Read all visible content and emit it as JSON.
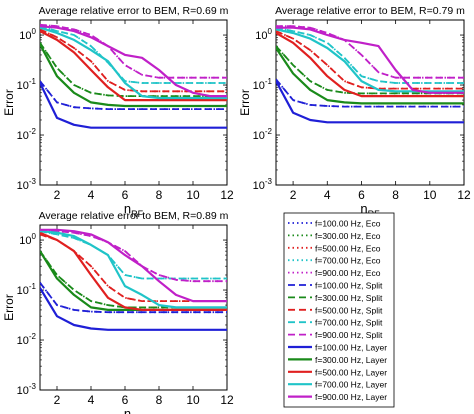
{
  "figure": {
    "legend": {
      "entries": [
        {
          "label": "f=100.00 Hz, Eco",
          "color": "#1f1fd6",
          "style": "dotted"
        },
        {
          "label": "f=300.00 Hz, Eco",
          "color": "#1a8a1a",
          "style": "dotted"
        },
        {
          "label": "f=500.00 Hz, Eco",
          "color": "#e02020",
          "style": "dotted"
        },
        {
          "label": "f=700.00 Hz, Eco",
          "color": "#20c4c8",
          "style": "dotted"
        },
        {
          "label": "f=900.00 Hz, Eco",
          "color": "#c020c8",
          "style": "dotted"
        },
        {
          "label": "f=100.00 Hz, Split",
          "color": "#1f1fd6",
          "style": "dashed"
        },
        {
          "label": "f=300.00 Hz, Split",
          "color": "#1a8a1a",
          "style": "dashed"
        },
        {
          "label": "f=500.00 Hz, Split",
          "color": "#e02020",
          "style": "dashed"
        },
        {
          "label": "f=700.00 Hz, Split",
          "color": "#20c4c8",
          "style": "dashed"
        },
        {
          "label": "f=900.00 Hz, Split",
          "color": "#c020c8",
          "style": "dashed"
        },
        {
          "label": "f=100.00 Hz, Layer",
          "color": "#1f1fd6",
          "style": "solid"
        },
        {
          "label": "f=300.00 Hz, Layer",
          "color": "#1a8a1a",
          "style": "solid"
        },
        {
          "label": "f=500.00 Hz, Layer",
          "color": "#e02020",
          "style": "solid"
        },
        {
          "label": "f=700.00 Hz, Layer",
          "color": "#20c4c8",
          "style": "solid"
        },
        {
          "label": "f=900.00 Hz, Layer",
          "color": "#c020c8",
          "style": "solid"
        }
      ]
    }
  },
  "chart_data": [
    {
      "type": "line",
      "title": "Average relative error to BEM, R=0.69 m",
      "xlabel": "n_RF",
      "ylabel": "Error",
      "xlim": [
        1,
        12
      ],
      "ylim": [
        0.001,
        2
      ],
      "yscale": "log",
      "xticks": [
        2,
        4,
        6,
        8,
        10,
        12
      ],
      "yticks": [
        "10^-3",
        "10^-2",
        "10^-1",
        "10^0"
      ],
      "x": [
        1,
        2,
        3,
        4,
        5,
        6,
        7,
        8,
        9,
        10,
        11,
        12
      ],
      "series": [
        {
          "name": "f=100.00 Hz, Eco",
          "values": [
            0.12,
            0.045,
            0.036,
            0.034,
            0.033,
            0.033,
            0.033,
            0.033,
            0.033,
            0.033,
            0.033,
            0.033
          ]
        },
        {
          "name": "f=300.00 Hz, Eco",
          "values": [
            0.7,
            0.22,
            0.1,
            0.07,
            0.062,
            0.06,
            0.06,
            0.06,
            0.06,
            0.06,
            0.06,
            0.06
          ]
        },
        {
          "name": "f=500.00 Hz, Eco",
          "values": [
            1.3,
            0.9,
            0.55,
            0.3,
            0.12,
            0.08,
            0.075,
            0.075,
            0.075,
            0.075,
            0.075,
            0.075
          ]
        },
        {
          "name": "f=700.00 Hz, Eco",
          "values": [
            1.5,
            1.2,
            1.0,
            0.6,
            0.28,
            0.12,
            0.11,
            0.11,
            0.11,
            0.11,
            0.11,
            0.11
          ]
        },
        {
          "name": "f=900.00 Hz, Eco",
          "values": [
            1.6,
            1.5,
            1.3,
            1.0,
            0.6,
            0.25,
            0.16,
            0.14,
            0.14,
            0.14,
            0.14,
            0.14
          ]
        },
        {
          "name": "f=100.00 Hz, Split",
          "values": [
            0.12,
            0.045,
            0.036,
            0.034,
            0.033,
            0.033,
            0.033,
            0.033,
            0.033,
            0.033,
            0.033,
            0.033
          ]
        },
        {
          "name": "f=300.00 Hz, Split",
          "values": [
            0.7,
            0.22,
            0.1,
            0.07,
            0.062,
            0.06,
            0.06,
            0.06,
            0.06,
            0.06,
            0.06,
            0.06
          ]
        },
        {
          "name": "f=500.00 Hz, Split",
          "values": [
            1.3,
            0.9,
            0.55,
            0.3,
            0.12,
            0.08,
            0.075,
            0.075,
            0.075,
            0.075,
            0.075,
            0.075
          ]
        },
        {
          "name": "f=700.00 Hz, Split",
          "values": [
            1.5,
            1.2,
            1.0,
            0.6,
            0.28,
            0.12,
            0.11,
            0.11,
            0.11,
            0.11,
            0.11,
            0.11
          ]
        },
        {
          "name": "f=900.00 Hz, Split",
          "values": [
            1.6,
            1.5,
            1.3,
            1.0,
            0.6,
            0.25,
            0.16,
            0.14,
            0.14,
            0.14,
            0.14,
            0.14
          ]
        },
        {
          "name": "f=100.00 Hz, Layer",
          "values": [
            0.11,
            0.022,
            0.016,
            0.014,
            0.014,
            0.014,
            0.014,
            0.014,
            0.014,
            0.014,
            0.014,
            0.014
          ]
        },
        {
          "name": "f=300.00 Hz, Layer",
          "values": [
            0.65,
            0.15,
            0.07,
            0.045,
            0.04,
            0.038,
            0.038,
            0.038,
            0.038,
            0.038,
            0.038,
            0.038
          ]
        },
        {
          "name": "f=500.00 Hz, Layer",
          "values": [
            1.2,
            0.8,
            0.45,
            0.2,
            0.09,
            0.05,
            0.05,
            0.05,
            0.05,
            0.05,
            0.05,
            0.05
          ]
        },
        {
          "name": "f=700.00 Hz, Layer",
          "values": [
            1.4,
            1.1,
            0.8,
            0.5,
            0.3,
            0.11,
            0.06,
            0.055,
            0.055,
            0.055,
            0.055,
            0.055
          ]
        },
        {
          "name": "f=900.00 Hz, Layer",
          "values": [
            1.5,
            1.4,
            1.2,
            0.9,
            0.6,
            0.4,
            0.35,
            0.2,
            0.1,
            0.07,
            0.06,
            0.06
          ]
        }
      ]
    },
    {
      "type": "line",
      "title": "Average relative error to BEM, R=0.79 m",
      "xlabel": "n_RF",
      "ylabel": "Error",
      "xlim": [
        1,
        12
      ],
      "ylim": [
        0.001,
        2
      ],
      "yscale": "log",
      "xticks": [
        2,
        4,
        6,
        8,
        10,
        12
      ],
      "yticks": [
        "10^-3",
        "10^-2",
        "10^-1",
        "10^0"
      ],
      "x": [
        1,
        2,
        3,
        4,
        5,
        6,
        7,
        8,
        9,
        10,
        11,
        12
      ],
      "series": [
        {
          "name": "f=100.00 Hz, Eco",
          "values": [
            0.13,
            0.05,
            0.04,
            0.038,
            0.037,
            0.037,
            0.037,
            0.037,
            0.037,
            0.037,
            0.037,
            0.037
          ]
        },
        {
          "name": "f=300.00 Hz, Eco",
          "values": [
            0.6,
            0.25,
            0.12,
            0.08,
            0.07,
            0.068,
            0.068,
            0.068,
            0.068,
            0.068,
            0.068,
            0.068
          ]
        },
        {
          "name": "f=500.00 Hz, Eco",
          "values": [
            1.2,
            0.85,
            0.5,
            0.25,
            0.12,
            0.09,
            0.085,
            0.085,
            0.085,
            0.085,
            0.085,
            0.085
          ]
        },
        {
          "name": "f=700.00 Hz, Eco",
          "values": [
            1.4,
            1.2,
            1.0,
            0.7,
            0.35,
            0.15,
            0.12,
            0.11,
            0.11,
            0.11,
            0.11,
            0.11
          ]
        },
        {
          "name": "f=900.00 Hz, Eco",
          "values": [
            1.5,
            1.5,
            1.4,
            1.1,
            0.8,
            0.4,
            0.18,
            0.14,
            0.14,
            0.14,
            0.14,
            0.14
          ]
        },
        {
          "name": "f=100.00 Hz, Split",
          "values": [
            0.13,
            0.05,
            0.04,
            0.038,
            0.037,
            0.037,
            0.037,
            0.037,
            0.037,
            0.037,
            0.037,
            0.037
          ]
        },
        {
          "name": "f=300.00 Hz, Split",
          "values": [
            0.6,
            0.25,
            0.12,
            0.08,
            0.07,
            0.068,
            0.068,
            0.068,
            0.068,
            0.068,
            0.068,
            0.068
          ]
        },
        {
          "name": "f=500.00 Hz, Split",
          "values": [
            1.2,
            0.85,
            0.5,
            0.25,
            0.12,
            0.09,
            0.085,
            0.085,
            0.085,
            0.085,
            0.085,
            0.085
          ]
        },
        {
          "name": "f=700.00 Hz, Split",
          "values": [
            1.4,
            1.2,
            1.0,
            0.7,
            0.35,
            0.15,
            0.12,
            0.11,
            0.11,
            0.11,
            0.11,
            0.11
          ]
        },
        {
          "name": "f=900.00 Hz, Split",
          "values": [
            1.5,
            1.5,
            1.4,
            1.1,
            0.8,
            0.4,
            0.18,
            0.14,
            0.14,
            0.14,
            0.14,
            0.14
          ]
        },
        {
          "name": "f=100.00 Hz, Layer",
          "values": [
            0.12,
            0.028,
            0.02,
            0.018,
            0.018,
            0.018,
            0.018,
            0.018,
            0.018,
            0.018,
            0.018,
            0.018
          ]
        },
        {
          "name": "f=300.00 Hz, Layer",
          "values": [
            0.55,
            0.17,
            0.08,
            0.05,
            0.045,
            0.043,
            0.043,
            0.043,
            0.043,
            0.043,
            0.043,
            0.043
          ]
        },
        {
          "name": "f=500.00 Hz, Layer",
          "values": [
            1.1,
            0.7,
            0.35,
            0.15,
            0.08,
            0.06,
            0.06,
            0.06,
            0.06,
            0.06,
            0.06,
            0.06
          ]
        },
        {
          "name": "f=700.00 Hz, Layer",
          "values": [
            1.3,
            1.1,
            0.85,
            0.55,
            0.3,
            0.12,
            0.08,
            0.075,
            0.075,
            0.075,
            0.075,
            0.075
          ]
        },
        {
          "name": "f=900.00 Hz, Layer",
          "values": [
            1.4,
            1.4,
            1.3,
            1.0,
            0.8,
            0.7,
            0.6,
            0.2,
            0.08,
            0.07,
            0.07,
            0.07
          ]
        }
      ]
    },
    {
      "type": "line",
      "title": "Average relative error to BEM, R=0.89 m",
      "xlabel": "n_RF",
      "ylabel": "Error",
      "xlim": [
        1,
        12
      ],
      "ylim": [
        0.001,
        2
      ],
      "yscale": "log",
      "xticks": [
        2,
        4,
        6,
        8,
        10,
        12
      ],
      "yticks": [
        "10^-3",
        "10^-2",
        "10^-1",
        "10^0"
      ],
      "x": [
        1,
        2,
        3,
        4,
        5,
        6,
        7,
        8,
        9,
        10,
        11,
        12
      ],
      "series": [
        {
          "name": "f=100.00 Hz, Eco",
          "values": [
            0.14,
            0.05,
            0.04,
            0.037,
            0.036,
            0.036,
            0.036,
            0.036,
            0.036,
            0.036,
            0.036,
            0.036
          ]
        },
        {
          "name": "f=300.00 Hz, Eco",
          "values": [
            0.6,
            0.2,
            0.1,
            0.06,
            0.05,
            0.045,
            0.045,
            0.045,
            0.045,
            0.045,
            0.045,
            0.045
          ]
        },
        {
          "name": "f=500.00 Hz, Eco",
          "values": [
            1.3,
            1.0,
            0.6,
            0.3,
            0.12,
            0.07,
            0.06,
            0.06,
            0.06,
            0.06,
            0.06,
            0.06
          ]
        },
        {
          "name": "f=700.00 Hz, Eco",
          "values": [
            1.5,
            1.3,
            1.1,
            0.8,
            0.5,
            0.2,
            0.17,
            0.17,
            0.17,
            0.17,
            0.17,
            0.17
          ]
        },
        {
          "name": "f=900.00 Hz, Eco",
          "values": [
            1.6,
            1.5,
            1.4,
            1.2,
            0.9,
            0.6,
            0.3,
            0.2,
            0.16,
            0.15,
            0.15,
            0.15
          ]
        },
        {
          "name": "f=100.00 Hz, Split",
          "values": [
            0.14,
            0.05,
            0.04,
            0.037,
            0.036,
            0.036,
            0.036,
            0.036,
            0.036,
            0.036,
            0.036,
            0.036
          ]
        },
        {
          "name": "f=300.00 Hz, Split",
          "values": [
            0.6,
            0.2,
            0.1,
            0.06,
            0.05,
            0.045,
            0.045,
            0.045,
            0.045,
            0.045,
            0.045,
            0.045
          ]
        },
        {
          "name": "f=500.00 Hz, Split",
          "values": [
            1.3,
            1.0,
            0.6,
            0.3,
            0.12,
            0.07,
            0.06,
            0.06,
            0.06,
            0.06,
            0.06,
            0.06
          ]
        },
        {
          "name": "f=700.00 Hz, Split",
          "values": [
            1.5,
            1.3,
            1.1,
            0.8,
            0.5,
            0.2,
            0.17,
            0.17,
            0.17,
            0.17,
            0.17,
            0.17
          ]
        },
        {
          "name": "f=900.00 Hz, Split",
          "values": [
            1.6,
            1.5,
            1.4,
            1.2,
            0.9,
            0.6,
            0.3,
            0.2,
            0.16,
            0.15,
            0.15,
            0.15
          ]
        },
        {
          "name": "f=100.00 Hz, Layer",
          "values": [
            0.11,
            0.03,
            0.02,
            0.017,
            0.016,
            0.016,
            0.016,
            0.016,
            0.016,
            0.016,
            0.016,
            0.016
          ]
        },
        {
          "name": "f=300.00 Hz, Layer",
          "values": [
            0.6,
            0.17,
            0.08,
            0.045,
            0.04,
            0.04,
            0.04,
            0.04,
            0.04,
            0.04,
            0.04,
            0.04
          ]
        },
        {
          "name": "f=500.00 Hz, Layer",
          "values": [
            1.4,
            1.0,
            0.6,
            0.2,
            0.07,
            0.045,
            0.04,
            0.04,
            0.04,
            0.04,
            0.04,
            0.04
          ]
        },
        {
          "name": "f=700.00 Hz, Layer",
          "values": [
            1.5,
            1.4,
            1.2,
            0.8,
            0.5,
            0.12,
            0.08,
            0.05,
            0.045,
            0.045,
            0.045,
            0.045
          ]
        },
        {
          "name": "f=900.00 Hz, Layer",
          "values": [
            1.6,
            1.6,
            1.5,
            1.3,
            0.9,
            0.5,
            0.3,
            0.15,
            0.08,
            0.06,
            0.06,
            0.06
          ]
        }
      ]
    }
  ]
}
